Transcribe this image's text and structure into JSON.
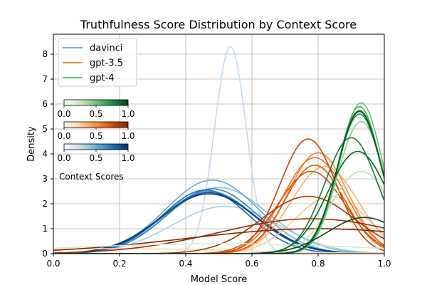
{
  "chart_data": {
    "type": "line",
    "title": "Truthfulness Score Distribution by Context Score",
    "xlabel": "Model Score",
    "ylabel": "Density",
    "xlim": [
      0.0,
      1.0
    ],
    "ylim": [
      0.0,
      8.8
    ],
    "xticks": [
      "0.0",
      "0.2",
      "0.4",
      "0.6",
      "0.8",
      "1.0"
    ],
    "yticks": [
      "0",
      "1",
      "2",
      "3",
      "4",
      "5",
      "6",
      "7",
      "8"
    ],
    "grid": true,
    "legend": {
      "placement": "top-left",
      "entries": [
        {
          "name": "davinci",
          "color": "#5fa2ce"
        },
        {
          "name": "gpt-3.5",
          "color": "#f47c20"
        },
        {
          "name": "gpt-4",
          "color": "#57b95c"
        }
      ]
    },
    "colorbars": {
      "label": "Context Scores",
      "ticks": [
        "0.0",
        "0.5",
        "1.0"
      ],
      "bars": [
        {
          "model": "gpt-4",
          "colormap": "Greens"
        },
        {
          "model": "gpt-3.5",
          "colormap": "Oranges"
        },
        {
          "model": "davinci",
          "colormap": "Blues"
        }
      ]
    },
    "series": [
      {
        "model": "davinci",
        "context": 0.15,
        "mean": 0.535,
        "sd": 0.048,
        "peak": 8.3
      },
      {
        "model": "davinci",
        "context": 0.25,
        "mean": 0.52,
        "sd": 0.16,
        "peak": 1.9
      },
      {
        "model": "davinci",
        "context": 0.35,
        "mean": 0.5,
        "sd": 0.15,
        "peak": 2.65
      },
      {
        "model": "davinci",
        "context": 0.45,
        "mean": 0.48,
        "sd": 0.14,
        "peak": 2.95
      },
      {
        "model": "davinci",
        "context": 0.55,
        "mean": 0.47,
        "sd": 0.14,
        "peak": 2.5
      },
      {
        "model": "davinci",
        "context": 0.65,
        "mean": 0.48,
        "sd": 0.135,
        "peak": 2.6
      },
      {
        "model": "davinci",
        "context": 0.75,
        "mean": 0.46,
        "sd": 0.13,
        "peak": 2.55
      },
      {
        "model": "davinci",
        "context": 0.85,
        "mean": 0.47,
        "sd": 0.14,
        "peak": 2.45
      },
      {
        "model": "davinci",
        "context": 0.95,
        "mean": 0.47,
        "sd": 0.145,
        "peak": 2.4
      },
      {
        "model": "gpt-3.5",
        "context": 0.1,
        "mean": 0.2,
        "sd": 0.35,
        "peak": 0.2
      },
      {
        "model": "gpt-3.5",
        "context": 0.2,
        "mean": 0.84,
        "sd": 0.11,
        "peak": 2.3
      },
      {
        "model": "gpt-3.5",
        "context": 0.3,
        "mean": 0.82,
        "sd": 0.1,
        "peak": 3.5
      },
      {
        "model": "gpt-3.5",
        "context": 0.45,
        "mean": 0.8,
        "sd": 0.09,
        "peak": 4.05
      },
      {
        "model": "gpt-3.5",
        "context": 0.55,
        "mean": 0.79,
        "sd": 0.095,
        "peak": 3.85
      },
      {
        "model": "gpt-3.5",
        "context": 0.65,
        "mean": 0.79,
        "sd": 0.09,
        "peak": 3.55
      },
      {
        "model": "gpt-3.5",
        "context": 0.7,
        "mean": 0.78,
        "sd": 0.1,
        "peak": 3.3
      },
      {
        "model": "gpt-3.5",
        "context": 0.75,
        "mean": 0.77,
        "sd": 0.085,
        "peak": 4.6
      },
      {
        "model": "gpt-3.5",
        "context": 0.85,
        "mean": 0.77,
        "sd": 0.14,
        "peak": 2.3
      },
      {
        "model": "gpt-3.5",
        "context": 0.92,
        "mean": 0.78,
        "sd": 0.28,
        "peak": 1.4
      },
      {
        "model": "gpt-3.5",
        "context": 0.98,
        "mean": 0.8,
        "sd": 0.4,
        "peak": 1.0
      },
      {
        "model": "gpt-4",
        "context": 0.1,
        "mean": 0.5,
        "sd": 0.45,
        "peak": 0.4
      },
      {
        "model": "gpt-4",
        "context": 0.2,
        "mean": 0.93,
        "sd": 0.09,
        "peak": 3.3
      },
      {
        "model": "gpt-4",
        "context": 0.35,
        "mean": 0.93,
        "sd": 0.07,
        "peak": 5.3
      },
      {
        "model": "gpt-4",
        "context": 0.45,
        "mean": 0.93,
        "sd": 0.065,
        "peak": 6.05
      },
      {
        "model": "gpt-4",
        "context": 0.55,
        "mean": 0.925,
        "sd": 0.065,
        "peak": 5.9
      },
      {
        "model": "gpt-4",
        "context": 0.65,
        "mean": 0.925,
        "sd": 0.066,
        "peak": 5.75
      },
      {
        "model": "gpt-4",
        "context": 0.72,
        "mean": 0.925,
        "sd": 0.068,
        "peak": 5.6
      },
      {
        "model": "gpt-4",
        "context": 0.8,
        "mean": 0.9,
        "sd": 0.08,
        "peak": 4.65
      },
      {
        "model": "gpt-4",
        "context": 0.88,
        "mean": 0.92,
        "sd": 0.09,
        "peak": 4.1
      },
      {
        "model": "gpt-4",
        "context": 0.95,
        "mean": 0.925,
        "sd": 0.067,
        "peak": 5.7
      },
      {
        "model": "gpt-4",
        "context": 0.99,
        "mean": 0.94,
        "sd": 0.11,
        "peak": 1.45
      }
    ]
  }
}
